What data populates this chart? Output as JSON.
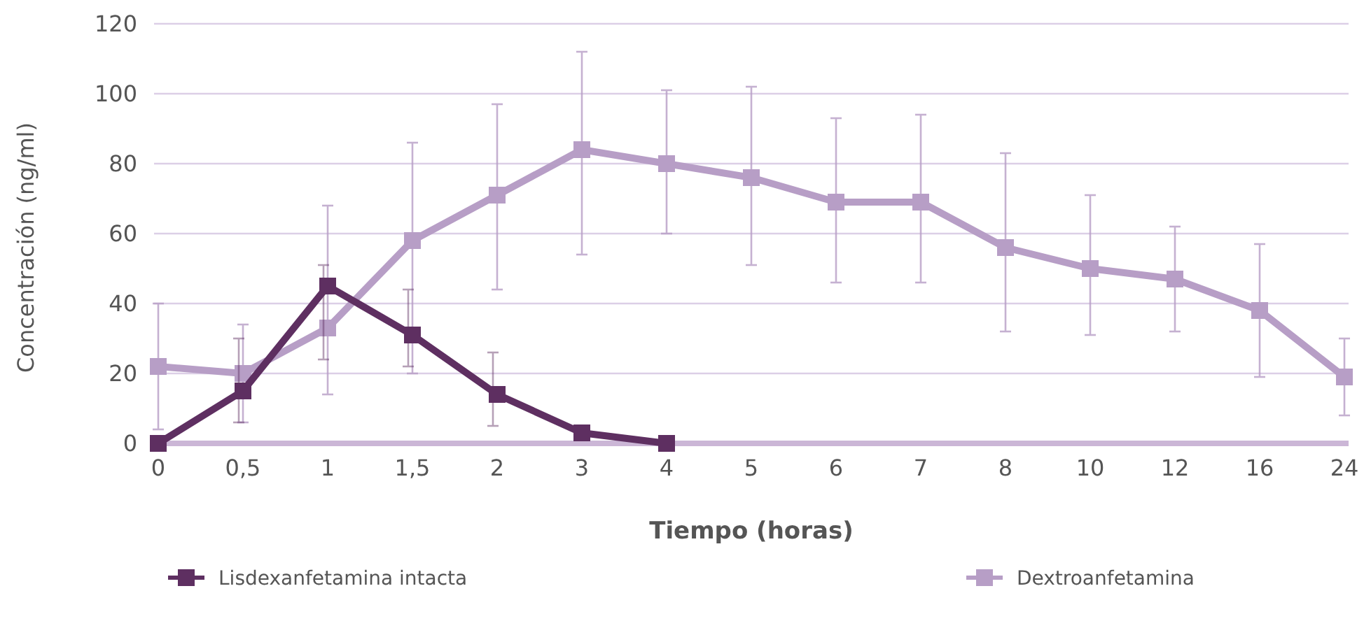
{
  "chart_data": {
    "type": "line",
    "xlabel": "Tiempo (horas)",
    "ylabel": "Concentración (ng/ml)",
    "categories": [
      "0",
      "0,5",
      "1",
      "1,5",
      "2",
      "3",
      "4",
      "5",
      "6",
      "7",
      "8",
      "10",
      "12",
      "16",
      "24"
    ],
    "series": [
      {
        "name": "Lisdexanfetamina intacta",
        "color": "#5e2f61",
        "values": [
          0,
          15,
          45,
          31,
          14,
          3,
          0,
          null,
          null,
          null,
          null,
          null,
          null,
          null,
          null
        ],
        "errors": [
          null,
          [
            6,
            30
          ],
          [
            24,
            51
          ],
          [
            22,
            44
          ],
          [
            5,
            26
          ],
          null,
          null,
          null,
          null,
          null,
          null,
          null,
          null,
          null,
          null
        ]
      },
      {
        "name": "Dextroanfetamina",
        "color": "#b79ec6",
        "values": [
          22,
          20,
          33,
          58,
          71,
          84,
          80,
          76,
          69,
          69,
          56,
          50,
          47,
          38,
          19
        ],
        "errors": [
          [
            4,
            40
          ],
          [
            6,
            34
          ],
          [
            14,
            68
          ],
          [
            20,
            86
          ],
          [
            44,
            97
          ],
          [
            54,
            112
          ],
          [
            60,
            101
          ],
          [
            51,
            102
          ],
          [
            46,
            93
          ],
          [
            46,
            94
          ],
          [
            32,
            83
          ],
          [
            31,
            71
          ],
          [
            32,
            62
          ],
          [
            19,
            57
          ],
          [
            8,
            30
          ]
        ]
      }
    ],
    "ylim": [
      0,
      120
    ],
    "yticks": [
      0,
      20,
      40,
      60,
      80,
      100,
      120
    ],
    "grid": "y",
    "legend": "bottom",
    "marker": "square",
    "line_style": "solid"
  }
}
